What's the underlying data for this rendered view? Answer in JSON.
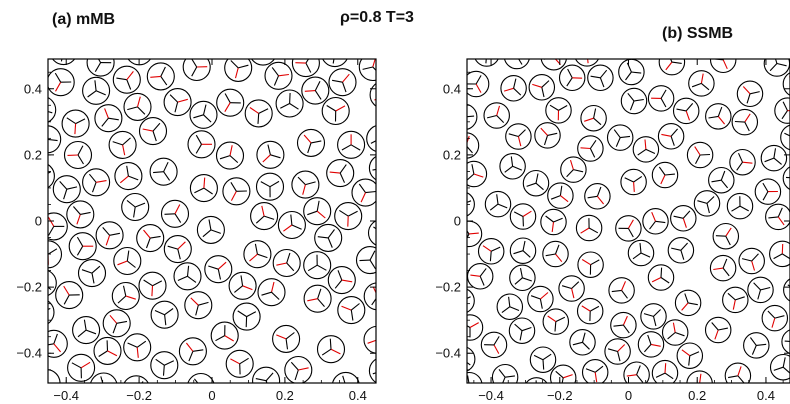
{
  "header": {
    "panel_a_title": "(a)  mMB",
    "center_title": "ρ=0.8    T=3",
    "panel_b_title": "(b)  SSMB"
  },
  "colors": {
    "frame": "#000000",
    "arm": "#000000",
    "hbond_arm": "#e00000"
  },
  "chart_data": [
    {
      "type": "scatter",
      "marker": "three-arm-disk",
      "title": "(a)  mMB",
      "xlabel": "",
      "ylabel": "",
      "xlim": [
        -0.45,
        0.45
      ],
      "ylim": [
        -0.49,
        0.49
      ],
      "xticks": [
        "−0.4",
        "−0.2",
        "0",
        "0.2",
        "0.4"
      ],
      "yticks": [
        "0.4",
        "0.2",
        "0",
        "−0.2",
        "−0.4"
      ],
      "grid": false,
      "disk_diameter": 0.074,
      "arms_per_disk": 3,
      "n_particles_shown": 110
    },
    {
      "type": "scatter",
      "marker": "three-arm-disk",
      "title": "(b)  SSMB",
      "xlabel": "",
      "ylabel": "",
      "xlim": [
        -0.47,
        0.47
      ],
      "ylim": [
        -0.49,
        0.49
      ],
      "xticks": [
        "−0.4",
        "−0.2",
        "0",
        "0.2",
        "0.4"
      ],
      "yticks": [
        "0.4",
        "0.2",
        "0",
        "−0.2",
        "−0.4"
      ],
      "grid": false,
      "disk_diameter": 0.074,
      "arms_per_disk": 3,
      "n_particles_shown": 110
    }
  ]
}
